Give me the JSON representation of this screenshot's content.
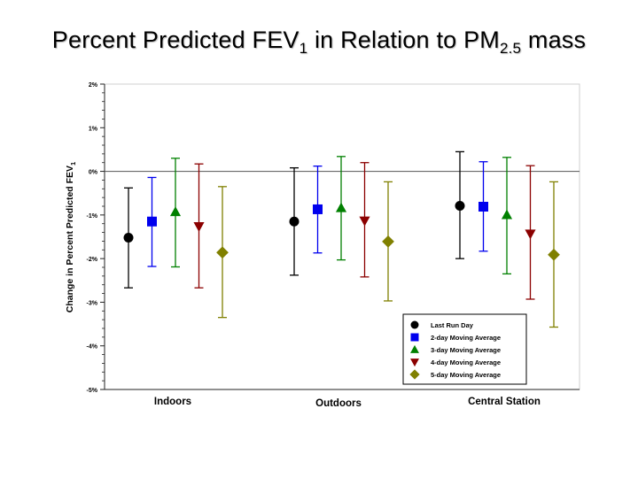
{
  "title": {
    "main": "Percent Predicted FEV",
    "main_sub": "1",
    "rest": " in Relation to PM",
    "rest_sub": "2.5",
    "tail": " mass"
  },
  "chart_data": {
    "type": "scatter",
    "ylabel": "Change in Percent Predicted FEV",
    "ylabel_sub": "1",
    "ylim": [
      -5,
      2
    ],
    "yticks": [
      2,
      1,
      0,
      -1,
      -2,
      -3,
      -4,
      -5
    ],
    "ytick_labels": [
      "2%",
      "1%",
      "0%",
      "-1%",
      "-2%",
      "-3%",
      "-4%",
      "-5%"
    ],
    "categories": [
      "Indoors",
      "Outdoors",
      "Central Station"
    ],
    "legend_position": "bottom-right",
    "series": [
      {
        "name": "Last Run Day",
        "color": "#000000",
        "marker": "circle",
        "values": [
          -1.52,
          -1.15,
          -0.79
        ],
        "lower": [
          -2.67,
          -2.38,
          -2.0
        ],
        "upper": [
          -0.38,
          0.08,
          0.45
        ]
      },
      {
        "name": "2-day Moving Average",
        "color": "#0000ee",
        "marker": "square",
        "values": [
          -1.15,
          -0.87,
          -0.81
        ],
        "lower": [
          -2.18,
          -1.87,
          -1.83
        ],
        "upper": [
          -0.14,
          0.12,
          0.22
        ]
      },
      {
        "name": "3-day Moving Average",
        "color": "#008000",
        "marker": "triangle-up",
        "values": [
          -0.93,
          -0.84,
          -1.0
        ],
        "lower": [
          -2.19,
          -2.03,
          -2.35
        ],
        "upper": [
          0.3,
          0.34,
          0.32
        ]
      },
      {
        "name": "4-day Moving Average",
        "color": "#8b0000",
        "marker": "triangle-down",
        "values": [
          -1.26,
          -1.13,
          -1.43
        ],
        "lower": [
          -2.67,
          -2.42,
          -2.93
        ],
        "upper": [
          0.17,
          0.2,
          0.13
        ]
      },
      {
        "name": "5-day Moving Average",
        "color": "#808000",
        "marker": "diamond",
        "values": [
          -1.86,
          -1.61,
          -1.91
        ],
        "lower": [
          -3.35,
          -2.97,
          -3.57
        ],
        "upper": [
          -0.35,
          -0.24,
          -0.24
        ]
      }
    ]
  }
}
